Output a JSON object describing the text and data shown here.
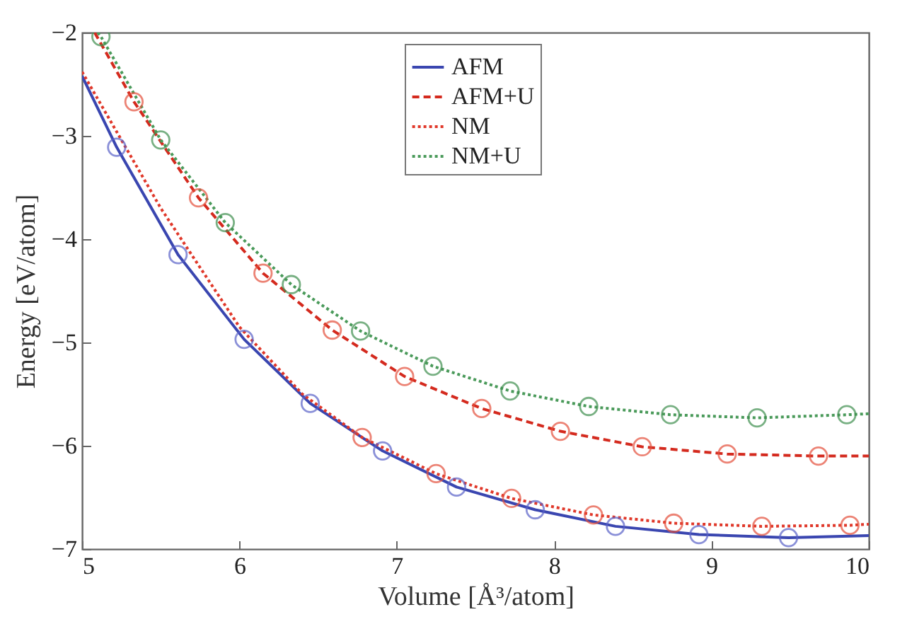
{
  "chart_data": {
    "type": "line",
    "xlabel": "Volume [Å³/atom]",
    "ylabel": "Energy [eV/atom]",
    "xlim": [
      5,
      10
    ],
    "xticks": [
      5,
      6,
      7,
      8,
      9,
      10
    ],
    "ylim": [
      -7,
      -2
    ],
    "yticks": [
      -7,
      -6,
      -5,
      -4,
      -3,
      -2
    ],
    "grid": false,
    "legend": "top",
    "series": [
      {
        "name": "AFM",
        "type": "line",
        "line_style": "solid",
        "color": "#3a46b0",
        "x": [
          5,
          5.22,
          5.61,
          6.03,
          6.45,
          6.91,
          7.38,
          7.88,
          8.39,
          8.92,
          9.49,
          10
        ],
        "values": [
          -2.42,
          -3.11,
          -4.15,
          -4.97,
          -5.59,
          -6.05,
          -6.4,
          -6.62,
          -6.78,
          -6.86,
          -6.89,
          -6.87
        ]
      },
      {
        "name": "AFM+U",
        "type": "line",
        "line_style": "dashed",
        "color": "#d42a1e",
        "x": [
          5.08,
          5.33,
          5.74,
          6.15,
          6.59,
          7.05,
          7.54,
          8.04,
          8.56,
          9.1,
          9.68,
          10
        ],
        "values": [
          -2.0,
          -2.67,
          -3.6,
          -4.33,
          -4.88,
          -5.33,
          -5.64,
          -5.86,
          -6.01,
          -6.08,
          -6.1,
          -6.1
        ]
      },
      {
        "name": "NM",
        "type": "line",
        "line_style": "dotted",
        "color": "#e0382a",
        "x": [
          5,
          5.5,
          6,
          6.4,
          6.78,
          7.25,
          7.73,
          8.25,
          8.76,
          9.32,
          9.88,
          10
        ],
        "values": [
          -2.38,
          -3.7,
          -4.85,
          -5.5,
          -5.92,
          -6.27,
          -6.51,
          -6.67,
          -6.75,
          -6.78,
          -6.77,
          -6.76
        ]
      },
      {
        "name": "NM+U",
        "type": "line",
        "line_style": "dotted",
        "color": "#4a9a5a",
        "x": [
          5.1,
          5.12,
          5.5,
          5.91,
          6.33,
          6.77,
          7.23,
          7.72,
          8.22,
          8.74,
          9.29,
          9.86,
          10
        ],
        "values": [
          -2.0,
          -2.04,
          -3.04,
          -3.84,
          -4.44,
          -4.89,
          -5.23,
          -5.47,
          -5.62,
          -5.7,
          -5.73,
          -5.7,
          -5.69
        ]
      },
      {
        "type": "scatter",
        "marker": "circle",
        "color": "#5a62c8",
        "x": [
          5.22,
          5.61,
          6.03,
          6.45,
          6.91,
          7.38,
          7.88,
          8.39,
          8.92,
          9.49
        ],
        "values": [
          -3.11,
          -4.15,
          -4.97,
          -5.59,
          -6.05,
          -6.4,
          -6.62,
          -6.78,
          -6.86,
          -6.89
        ]
      },
      {
        "type": "scatter",
        "marker": "circle",
        "color": "#e4503c",
        "x": [
          5.33,
          5.74,
          6.15,
          6.59,
          7.05,
          7.54,
          8.04,
          8.56,
          9.1,
          9.68
        ],
        "values": [
          -2.67,
          -3.6,
          -4.33,
          -4.88,
          -5.33,
          -5.64,
          -5.86,
          -6.01,
          -6.08,
          -6.1
        ]
      },
      {
        "type": "scatter",
        "marker": "circle",
        "color": "#e4503c",
        "x": [
          6.78,
          7.25,
          7.73,
          8.25,
          8.76,
          9.32,
          9.88
        ],
        "values": [
          -5.92,
          -6.27,
          -6.51,
          -6.67,
          -6.75,
          -6.78,
          -6.77
        ]
      },
      {
        "type": "scatter",
        "marker": "circle",
        "color": "#3f8f4f",
        "x": [
          5.12,
          5.5,
          5.91,
          6.33,
          6.77,
          7.23,
          7.72,
          8.22,
          8.74,
          9.29,
          9.86
        ],
        "values": [
          -2.04,
          -3.04,
          -3.84,
          -4.44,
          -4.89,
          -5.23,
          -5.47,
          -5.62,
          -5.7,
          -5.73,
          -5.7
        ]
      }
    ]
  }
}
